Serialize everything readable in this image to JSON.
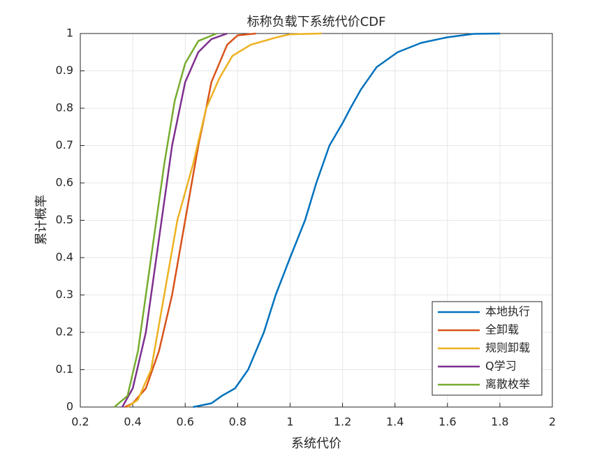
{
  "chart_data": {
    "type": "line",
    "title": "标称负载下系统代价CDF",
    "xlabel": "系统代价",
    "ylabel": "累计概率",
    "xlim": [
      0.2,
      2
    ],
    "ylim": [
      0,
      1
    ],
    "xticks": [
      0.2,
      0.4,
      0.6,
      0.8,
      1,
      1.2,
      1.4,
      1.6,
      1.8,
      2
    ],
    "yticks": [
      0,
      0.1,
      0.2,
      0.3,
      0.4,
      0.5,
      0.6,
      0.7,
      0.8,
      0.9,
      1
    ],
    "grid": true,
    "legend": "southeast",
    "series": [
      {
        "name": "本地执行",
        "color": "#0072BD",
        "x": [
          0.63,
          0.7,
          0.74,
          0.79,
          0.84,
          0.9,
          0.945,
          1.0,
          1.057,
          1.1,
          1.15,
          1.2,
          1.23,
          1.27,
          1.3,
          1.33,
          1.41,
          1.5,
          1.6,
          1.7,
          1.8
        ],
        "values": [
          0,
          0.01,
          0.03,
          0.05,
          0.1,
          0.2,
          0.3,
          0.4,
          0.5,
          0.6,
          0.7,
          0.76,
          0.8,
          0.85,
          0.88,
          0.91,
          0.95,
          0.975,
          0.99,
          0.999,
          1
        ]
      },
      {
        "name": "全卸载",
        "color": "#D95319",
        "x": [
          0.37,
          0.4,
          0.45,
          0.5,
          0.55,
          0.6,
          0.63,
          0.65,
          0.68,
          0.7,
          0.73,
          0.76,
          0.8,
          0.87
        ],
        "values": [
          0,
          0.01,
          0.05,
          0.15,
          0.3,
          0.5,
          0.62,
          0.7,
          0.8,
          0.87,
          0.92,
          0.97,
          0.995,
          1
        ]
      },
      {
        "name": "规则卸载",
        "color": "#EDB120",
        "x": [
          0.38,
          0.42,
          0.47,
          0.52,
          0.57,
          0.63,
          0.68,
          0.73,
          0.78,
          0.85,
          0.95,
          1.0,
          1.12
        ],
        "values": [
          0,
          0.02,
          0.1,
          0.3,
          0.5,
          0.65,
          0.8,
          0.88,
          0.94,
          0.97,
          0.99,
          0.998,
          1
        ]
      },
      {
        "name": "Q学习",
        "color": "#7E2F8E",
        "x": [
          0.36,
          0.4,
          0.45,
          0.5,
          0.55,
          0.6,
          0.65,
          0.7,
          0.76
        ],
        "values": [
          0,
          0.05,
          0.2,
          0.45,
          0.7,
          0.87,
          0.95,
          0.985,
          1
        ]
      },
      {
        "name": "离散枚举",
        "color": "#77AC30",
        "x": [
          0.33,
          0.38,
          0.42,
          0.47,
          0.52,
          0.56,
          0.6,
          0.65,
          0.72
        ],
        "values": [
          0,
          0.03,
          0.15,
          0.4,
          0.65,
          0.82,
          0.92,
          0.98,
          1
        ]
      }
    ]
  }
}
